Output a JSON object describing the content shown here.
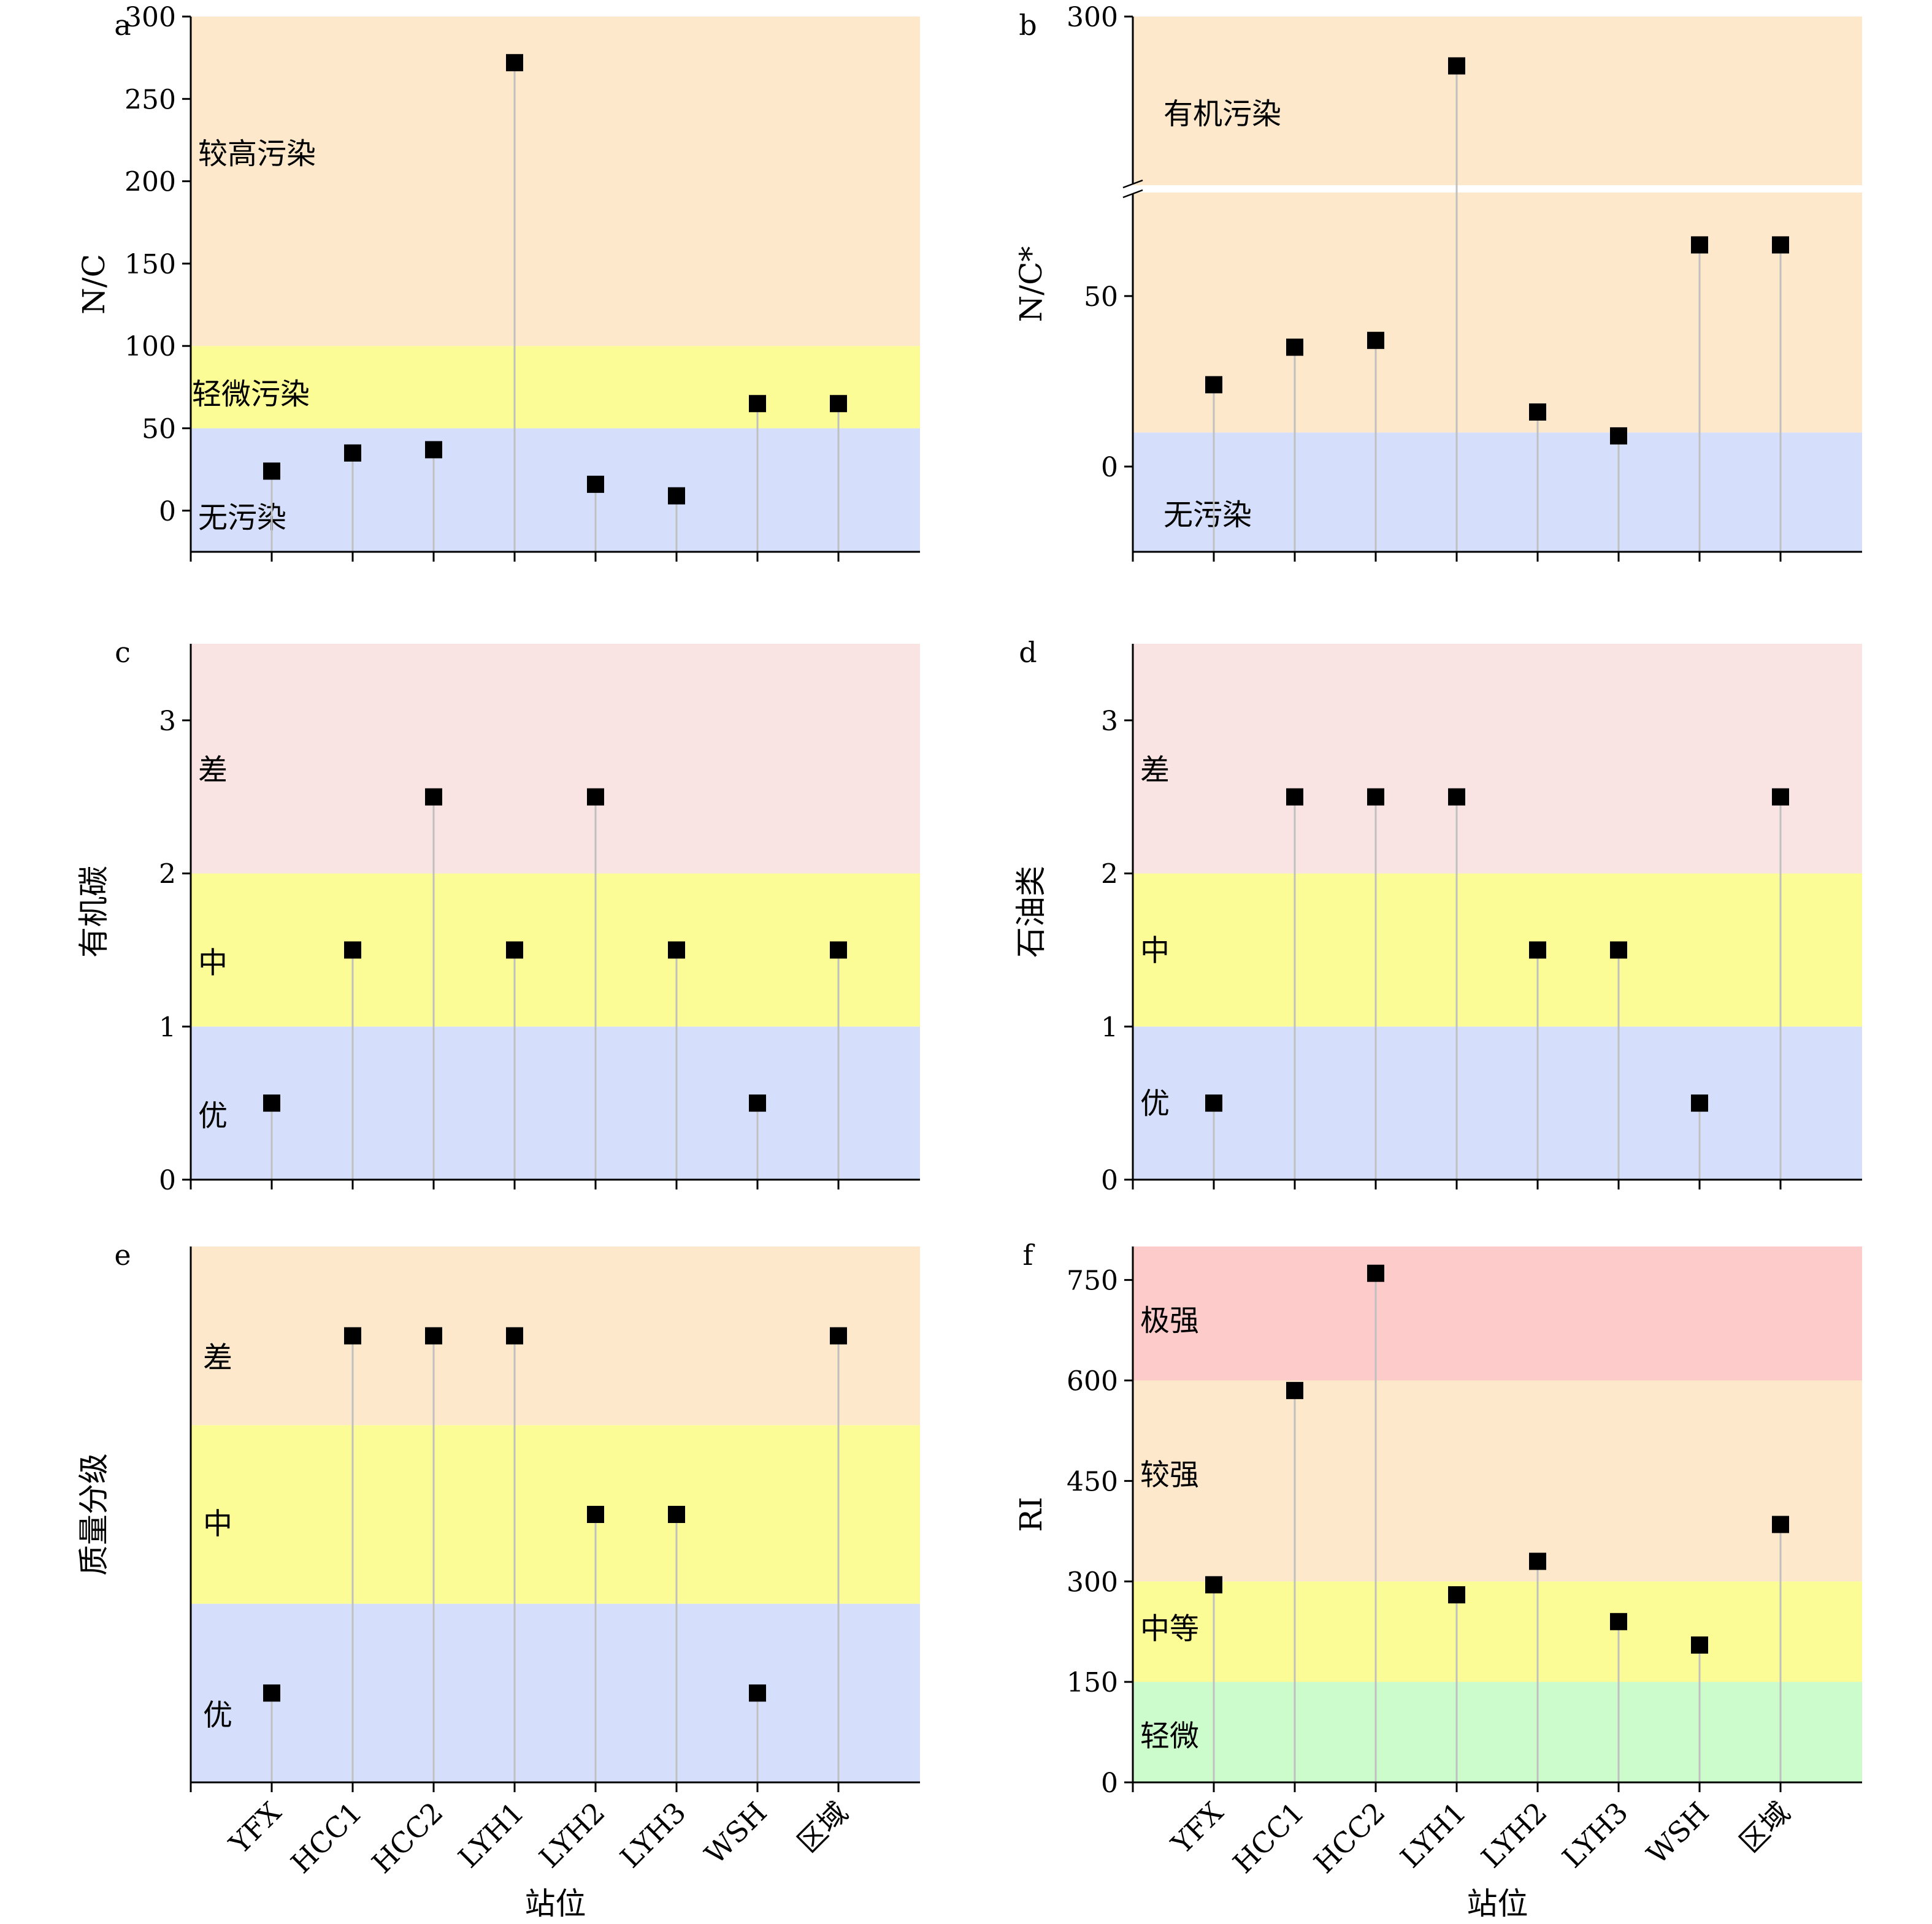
{
  "chart_data": [
    {
      "id": "a",
      "panel_label": "a",
      "type": "scatter",
      "ylabel": "N/C",
      "categories": [
        "YFX",
        "HCC1",
        "HCC2",
        "LYH1",
        "LYH2",
        "LYH3",
        "WSH",
        "区域"
      ],
      "values": [
        24,
        35,
        37,
        272,
        16,
        9,
        65,
        65
      ],
      "ylim": [
        -25,
        300
      ],
      "yticks": [
        0,
        50,
        100,
        150,
        200,
        250,
        300
      ],
      "ytick_labels": [
        "0",
        "50",
        "100",
        "150",
        "200",
        "250",
        "300"
      ],
      "bands": [
        {
          "from": -25,
          "to": 50,
          "color": "#d5dffc",
          "label": "无污染",
          "label_at": -4
        },
        {
          "from": 50,
          "to": 100,
          "color": "#fcfc96",
          "label": "轻微污染",
          "label_at": 71
        },
        {
          "from": 100,
          "to": 300,
          "color": "#fde8cb",
          "label": "较高污染",
          "label_at": 217
        }
      ],
      "show_xticklabels": false
    },
    {
      "id": "b",
      "panel_label": "b",
      "type": "scatter",
      "ylabel": "N/C*",
      "categories": [
        "YFX",
        "HCC1",
        "HCC2",
        "LYH1",
        "LYH2",
        "LYH3",
        "WSH",
        "区域"
      ],
      "values": [
        24,
        35,
        37,
        272,
        16,
        9,
        65,
        65
      ],
      "ylim": [
        -25,
        300
      ],
      "axis_break": {
        "lower_max": 80,
        "upper_min": 205
      },
      "yticks": [
        0,
        50,
        300
      ],
      "ytick_labels": [
        "0",
        "50",
        "300"
      ],
      "bands": [
        {
          "from": -25,
          "to": 10,
          "color": "#d5dffc",
          "label": "无污染",
          "label_at": -14
        },
        {
          "from": 10,
          "to": 300,
          "color": "#fde8cb",
          "label": "有机污染",
          "label_at": 245
        }
      ],
      "show_xticklabels": false
    },
    {
      "id": "c",
      "panel_label": "c",
      "type": "scatter",
      "ylabel": "有机碳",
      "categories": [
        "YFX",
        "HCC1",
        "HCC2",
        "LYH1",
        "LYH2",
        "LYH3",
        "WSH",
        "区域"
      ],
      "values": [
        0.5,
        1.5,
        2.5,
        1.5,
        2.5,
        1.5,
        0.5,
        1.5
      ],
      "ylim": [
        0,
        3.5
      ],
      "yticks": [
        0,
        1,
        2,
        3
      ],
      "ytick_labels": [
        "0",
        "1",
        "2",
        "3"
      ],
      "bands": [
        {
          "from": 0,
          "to": 1,
          "color": "#d5dffc",
          "label": "优",
          "label_at": 0.42
        },
        {
          "from": 1,
          "to": 2,
          "color": "#fcfc96",
          "label": "中",
          "label_at": 1.42
        },
        {
          "from": 2,
          "to": 3.5,
          "color": "#f9e3e3",
          "label": "差",
          "label_at": 2.68
        }
      ],
      "show_xticklabels": false
    },
    {
      "id": "d",
      "panel_label": "d",
      "type": "scatter",
      "ylabel": "石油类",
      "categories": [
        "YFX",
        "HCC1",
        "HCC2",
        "LYH1",
        "LYH2",
        "LYH3",
        "WSH",
        "区域"
      ],
      "values": [
        0.5,
        2.5,
        2.5,
        2.5,
        1.5,
        1.5,
        0.5,
        2.5
      ],
      "ylim": [
        0,
        3.5
      ],
      "yticks": [
        0,
        1,
        2,
        3
      ],
      "ytick_labels": [
        "0",
        "1",
        "2",
        "3"
      ],
      "bands": [
        {
          "from": 0,
          "to": 1,
          "color": "#d5dffc",
          "label": "优",
          "label_at": 0.5
        },
        {
          "from": 1,
          "to": 2,
          "color": "#fcfc96",
          "label": "中",
          "label_at": 1.5
        },
        {
          "from": 2,
          "to": 3.5,
          "color": "#f9e3e3",
          "label": "差",
          "label_at": 2.68
        }
      ],
      "show_xticklabels": false
    },
    {
      "id": "e",
      "panel_label": "e",
      "type": "scatter",
      "ylabel": "质量分级",
      "xlabel": "站位",
      "categories": [
        "YFX",
        "HCC1",
        "HCC2",
        "LYH1",
        "LYH2",
        "LYH3",
        "WSH",
        "区域"
      ],
      "values": [
        0.5,
        2.5,
        2.5,
        2.5,
        1.5,
        1.5,
        0.5,
        2.5
      ],
      "ylim": [
        0,
        3
      ],
      "yticks": [],
      "ytick_labels": [],
      "bands": [
        {
          "from": 0,
          "to": 1,
          "color": "#d5dffc",
          "label": "优",
          "label_at": 0.38
        },
        {
          "from": 1,
          "to": 2,
          "color": "#fcfc96",
          "label": "中",
          "label_at": 1.45
        },
        {
          "from": 2,
          "to": 3,
          "color": "#fde8cb",
          "label": "差",
          "label_at": 2.38
        }
      ],
      "show_xticklabels": true
    },
    {
      "id": "f",
      "panel_label": "f",
      "type": "scatter",
      "ylabel": "RI",
      "xlabel": "站位",
      "categories": [
        "YFX",
        "HCC1",
        "HCC2",
        "LYH1",
        "LYH2",
        "LYH3",
        "WSH",
        "区域"
      ],
      "values": [
        295,
        585,
        760,
        280,
        330,
        240,
        205,
        385
      ],
      "ylim": [
        0,
        800
      ],
      "yticks": [
        0,
        150,
        300,
        450,
        600,
        750
      ],
      "ytick_labels": [
        "0",
        "150",
        "300",
        "450",
        "600",
        "750"
      ],
      "bands": [
        {
          "from": 0,
          "to": 150,
          "color": "#ccfccc",
          "label": "轻微",
          "label_at": 70
        },
        {
          "from": 150,
          "to": 300,
          "color": "#fcfc96",
          "label": "中等",
          "label_at": 230
        },
        {
          "from": 300,
          "to": 600,
          "color": "#fde8cb",
          "label": "较强",
          "label_at": 460
        },
        {
          "from": 600,
          "to": 800,
          "color": "#fecbcb",
          "label": "极强",
          "label_at": 690
        }
      ],
      "show_xticklabels": true
    }
  ],
  "style": {
    "marker_color": "#000000",
    "stem_color": "#c0c0c0",
    "axis_color": "#000000"
  }
}
